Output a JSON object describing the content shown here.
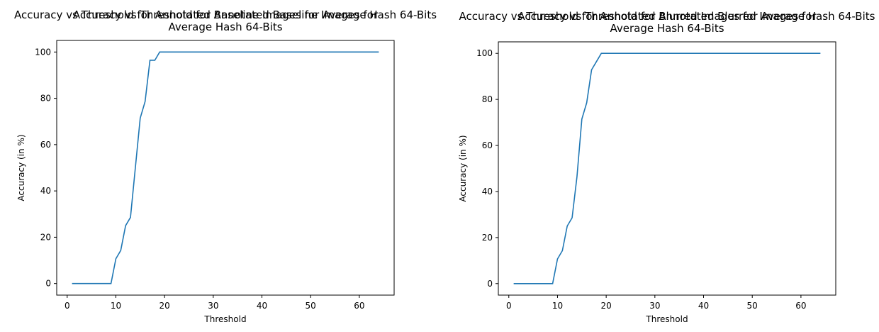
{
  "chart_data": [
    {
      "type": "line",
      "title": "Accuracy vs Threshold for Annotated Baseline Images for\nAverage Hash 64-Bits",
      "x_label": "Threshold",
      "y_label": "Accuracy (in %)",
      "x": [
        1,
        2,
        3,
        4,
        5,
        6,
        7,
        8,
        9,
        10,
        11,
        12,
        13,
        14,
        15,
        16,
        17,
        18,
        19,
        20,
        21,
        22,
        23,
        24,
        25,
        26,
        27,
        28,
        29,
        30,
        31,
        32,
        33,
        34,
        35,
        36,
        37,
        38,
        39,
        40,
        41,
        42,
        43,
        44,
        45,
        46,
        47,
        48,
        49,
        50,
        51,
        52,
        53,
        54,
        55,
        56,
        57,
        58,
        59,
        60,
        61,
        62,
        63,
        64
      ],
      "series": [
        {
          "color": "#1f77b4",
          "values": [
            0,
            0,
            0,
            0,
            0,
            0,
            0,
            0,
            0,
            10.71,
            14.29,
            25,
            28.57,
            50,
            71.43,
            78.57,
            96.43,
            96.43,
            100,
            100,
            100,
            100,
            100,
            100,
            100,
            100,
            100,
            100,
            100,
            100,
            100,
            100,
            100,
            100,
            100,
            100,
            100,
            100,
            100,
            100,
            100,
            100,
            100,
            100,
            100,
            100,
            100,
            100,
            100,
            100,
            100,
            100,
            100,
            100,
            100,
            100,
            100,
            100,
            100,
            100,
            100,
            100,
            100,
            100
          ]
        }
      ],
      "xlim": [
        -2.15,
        67.15
      ],
      "xticks": [
        0,
        10,
        20,
        30,
        40,
        50,
        60
      ],
      "ylim": [
        -5,
        105
      ],
      "yticks": [
        0,
        20,
        40,
        60,
        80,
        100
      ],
      "grid": false
    },
    {
      "type": "line",
      "title": "Accuracy vs Threshold for Annotated Blurred Images for\nAverage Hash 64-Bits",
      "x_label": "Threshold",
      "y_label": "Accuracy (in %)",
      "x": [
        1,
        2,
        3,
        4,
        5,
        6,
        7,
        8,
        9,
        10,
        11,
        12,
        13,
        14,
        15,
        16,
        17,
        18,
        19,
        20,
        21,
        22,
        23,
        24,
        25,
        26,
        27,
        28,
        29,
        30,
        31,
        32,
        33,
        34,
        35,
        36,
        37,
        38,
        39,
        40,
        41,
        42,
        43,
        44,
        45,
        46,
        47,
        48,
        49,
        50,
        51,
        52,
        53,
        54,
        55,
        56,
        57,
        58,
        59,
        60,
        61,
        62,
        63,
        64
      ],
      "series": [
        {
          "color": "#1f77b4",
          "values": [
            0,
            0,
            0,
            0,
            0,
            0,
            0,
            0,
            0,
            10.71,
            14.29,
            25,
            28.57,
            46.43,
            71.43,
            78.57,
            92.86,
            96.43,
            100,
            100,
            100,
            100,
            100,
            100,
            100,
            100,
            100,
            100,
            100,
            100,
            100,
            100,
            100,
            100,
            100,
            100,
            100,
            100,
            100,
            100,
            100,
            100,
            100,
            100,
            100,
            100,
            100,
            100,
            100,
            100,
            100,
            100,
            100,
            100,
            100,
            100,
            100,
            100,
            100,
            100,
            100,
            100,
            100,
            100
          ]
        }
      ],
      "xlim": [
        -2.15,
        67.15
      ],
      "xticks": [
        0,
        10,
        20,
        30,
        40,
        50,
        60
      ],
      "ylim": [
        -5,
        105
      ],
      "yticks": [
        0,
        20,
        40,
        60,
        80,
        100
      ],
      "grid": false
    }
  ]
}
